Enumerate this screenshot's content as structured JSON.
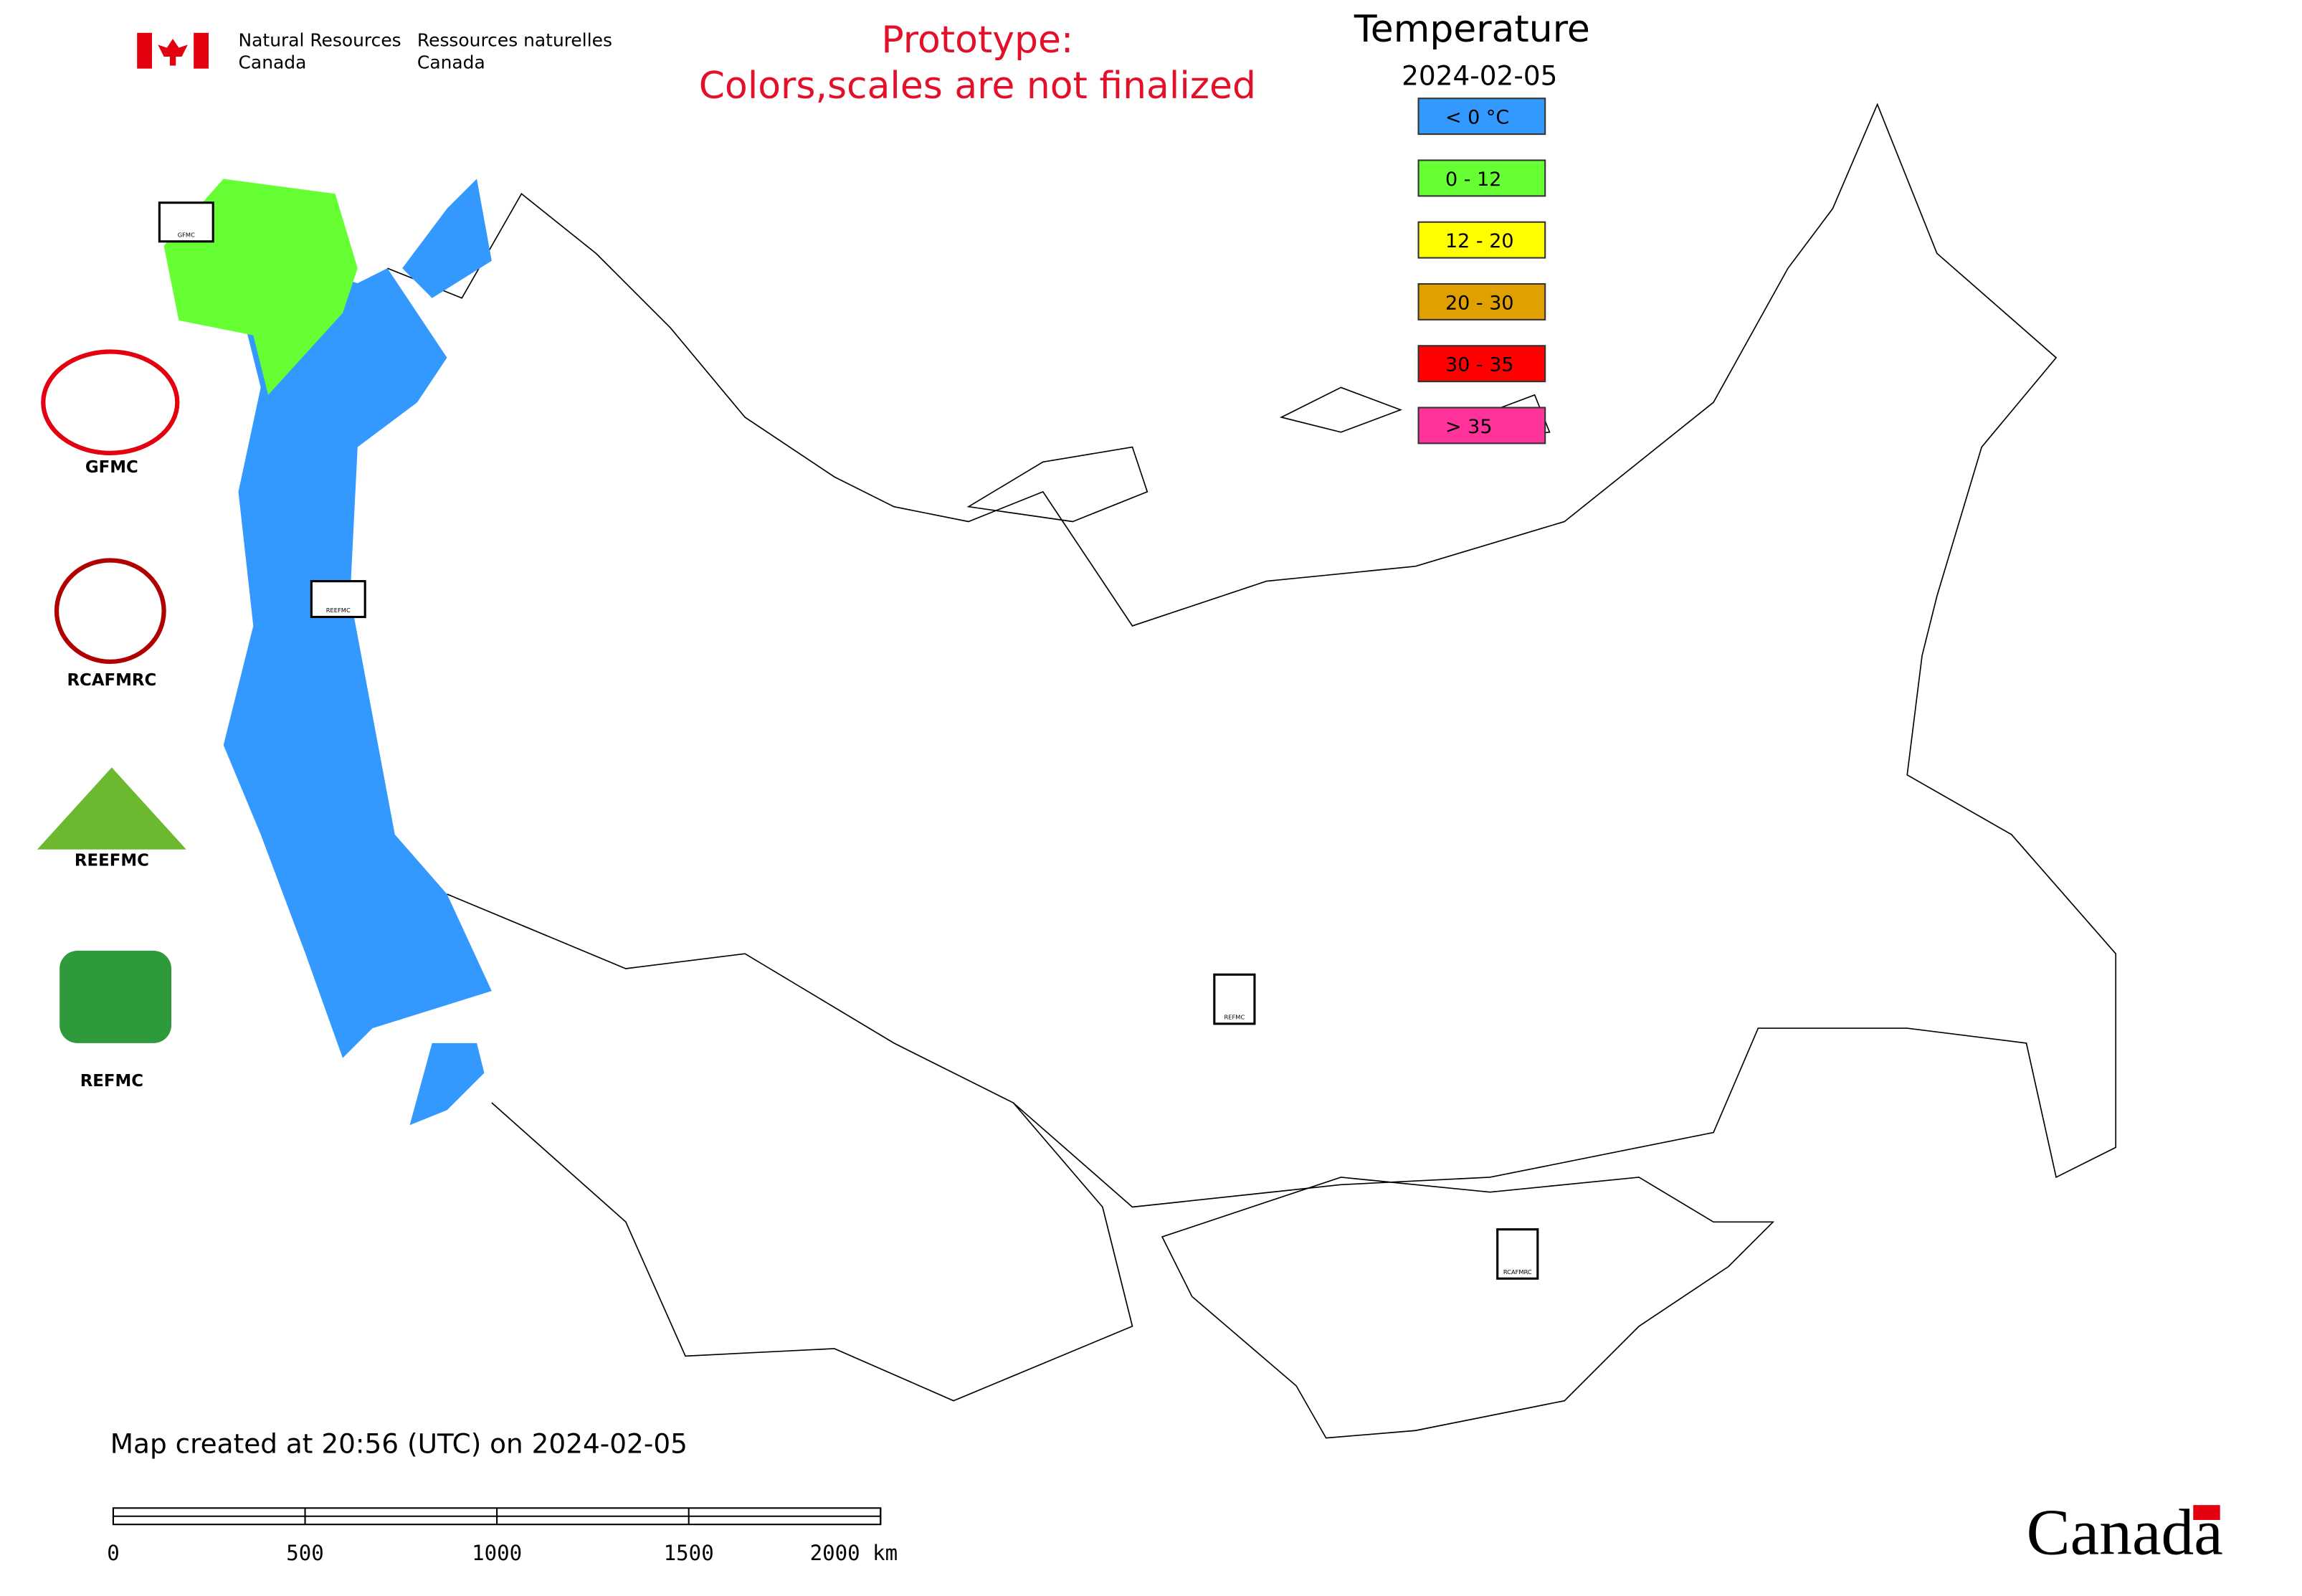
{
  "header": {
    "agency_en": [
      "Natural Resources",
      "Canada"
    ],
    "agency_fr": [
      "Ressources naturelles",
      "Canada"
    ],
    "notice": [
      "Prototype:",
      "Colors,scales are not finalized"
    ]
  },
  "legend": {
    "title": "Temperature",
    "date": "2024-02-05",
    "items": [
      {
        "label": "< 0 °C",
        "color": "#3399ff"
      },
      {
        "label": "0 - 12",
        "color": "#66ff33"
      },
      {
        "label": "12 - 20",
        "color": "#ffff00"
      },
      {
        "label": "20 - 30",
        "color": "#e0a000"
      },
      {
        "label": "30 - 35",
        "color": "#ff0000"
      },
      {
        "label": "> 35",
        "color": "#ff3399"
      }
    ]
  },
  "logos": [
    "GFMC",
    "RCAFMRC",
    "REEFMC",
    "REFMC"
  ],
  "map_markers": [
    "GFMC",
    "REEFMC",
    "REFMC",
    "RCAFMRC"
  ],
  "footer": {
    "created": "Map created at 20:56 (UTC) on 2024-02-05",
    "scale_labels": [
      "0",
      "500",
      "1000",
      "1500",
      "2000 km"
    ],
    "wordmark": "Canada"
  }
}
